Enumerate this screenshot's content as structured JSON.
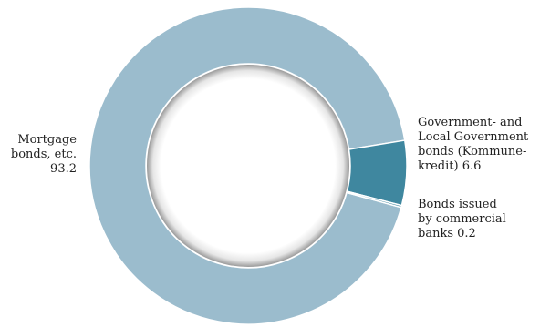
{
  "chart_data": {
    "type": "pie",
    "subtype": "donut",
    "categories": [
      "Mortgage bonds, etc.",
      "Government- and Local Government bonds (Kommune-kredit)",
      "Bonds issued by commercial banks"
    ],
    "values": [
      93.2,
      6.6,
      0.2
    ],
    "colors": [
      "#9bbccd",
      "#3f879f",
      "#3f879f"
    ],
    "labels": [
      "Mortgage\nbonds, etc.\n93.2",
      "Government- and\nLocal Government\nbonds (Kommune-\nkredit) 6.6",
      "Bonds issued\nby commercial\nbanks 0.2"
    ],
    "legend": "none",
    "title": ""
  }
}
